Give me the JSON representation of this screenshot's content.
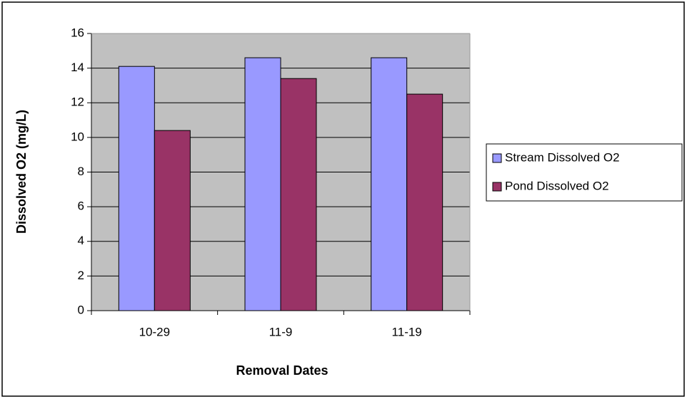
{
  "chart_data": {
    "type": "bar",
    "x_label": "Removal Dates",
    "y_label": "Dissolved O2 (mg/L)",
    "categories": [
      "10-29",
      "11-9",
      "11-19"
    ],
    "series": [
      {
        "name": "Stream Dissolved O2",
        "color": "#9999ff",
        "values": [
          14.1,
          14.6,
          14.6
        ]
      },
      {
        "name": "Pond Dissolved O2",
        "color": "#993366",
        "values": [
          10.4,
          13.4,
          12.5
        ]
      }
    ],
    "ylim": [
      0,
      16
    ],
    "yticks": [
      0,
      2,
      4,
      6,
      8,
      10,
      12,
      14,
      16
    ],
    "grid": true,
    "legend": "right",
    "plot_background": "#c0c0c0"
  }
}
